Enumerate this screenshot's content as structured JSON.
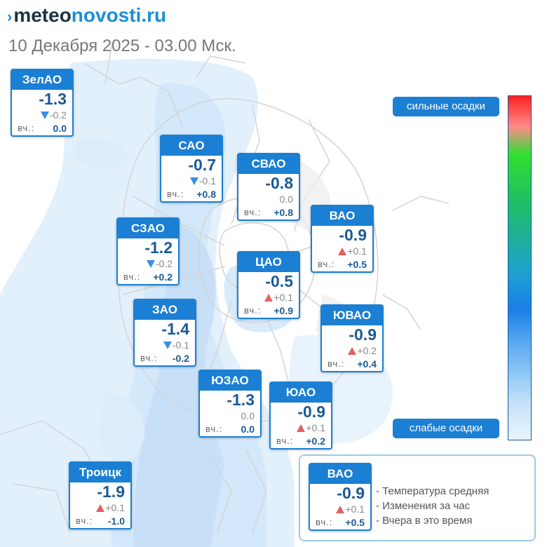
{
  "header": {
    "logo_mark": "›",
    "logo_part1": "meteo",
    "logo_part2": "novosti.ru",
    "date_line": "10 Декабря 2025 - 03.00 Мск."
  },
  "labels": {
    "yesterday": "вч.:"
  },
  "districts": [
    {
      "name": "ЗелАО",
      "temp": "-1.3",
      "trend": "down",
      "change": "-0.2",
      "yesterday": "0.0"
    },
    {
      "name": "САО",
      "temp": "-0.7",
      "trend": "down",
      "change": "-0.1",
      "yesterday": "+0.8"
    },
    {
      "name": "СВАО",
      "temp": "-0.8",
      "trend": "none",
      "change": "0.0",
      "yesterday": "+0.8"
    },
    {
      "name": "ВАО",
      "temp": "-0.9",
      "trend": "up",
      "change": "+0.1",
      "yesterday": "+0.5"
    },
    {
      "name": "СЗАО",
      "temp": "-1.2",
      "trend": "down",
      "change": "-0.2",
      "yesterday": "+0.2"
    },
    {
      "name": "ЦАО",
      "temp": "-0.5",
      "trend": "up",
      "change": "+0.1",
      "yesterday": "+0.9"
    },
    {
      "name": "ЗАО",
      "temp": "-1.4",
      "trend": "down",
      "change": "-0.1",
      "yesterday": "-0.2"
    },
    {
      "name": "ЮВАО",
      "temp": "-0.9",
      "trend": "up",
      "change": "+0.2",
      "yesterday": "+0.4"
    },
    {
      "name": "ЮЗАО",
      "temp": "-1.3",
      "trend": "none",
      "change": "0.0",
      "yesterday": "0.0"
    },
    {
      "name": "ЮАО",
      "temp": "-0.9",
      "trend": "up",
      "change": "+0.1",
      "yesterday": "+0.2"
    },
    {
      "name": "Троицк",
      "temp": "-1.9",
      "trend": "up",
      "change": "+0.1",
      "yesterday": "-1.0"
    }
  ],
  "precip_legend": {
    "strong": "сильные осадки",
    "weak": "слабые осадки",
    "colors": [
      "#ff2020",
      "#30e030",
      "#1a7fe8",
      "#e8f4fd"
    ]
  },
  "explanation": {
    "sample": {
      "name": "ВАО",
      "temp": "-0.9",
      "trend": "up",
      "change": "+0.1",
      "yesterday": "+0.5"
    },
    "items": [
      "- Температура средняя",
      "- Изменения за час",
      "- Вчера в это время"
    ]
  },
  "colors": {
    "accent": "#1b7fd3",
    "temp_text": "#1a5a96",
    "up": "#e26060",
    "down": "#3a8fe0"
  }
}
